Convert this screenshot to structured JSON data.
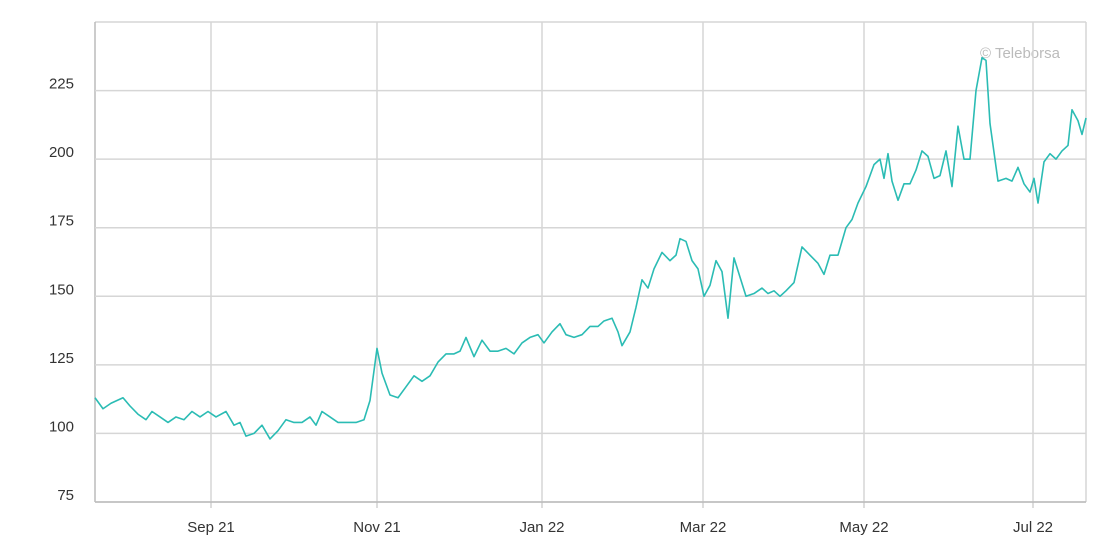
{
  "chart_data": {
    "type": "line",
    "watermark": "© Teleborsa",
    "x": [
      0,
      2,
      4,
      7,
      8.75,
      10.75,
      12.75,
      14.25,
      16.25,
      18.25,
      20.25,
      22.25,
      24.25,
      26.25,
      28.25,
      30.25,
      32.75,
      34.75,
      36.25,
      37.75,
      39.75,
      41.75,
      43.75,
      45.75,
      47.75,
      49.75,
      51.75,
      53.75,
      55.25,
      56.75,
      58.75,
      60.75,
      62.75,
      65.25,
      67.25,
      68.75,
      70.5,
      71.75,
      73.75,
      75.75,
      77.75,
      79.75,
      81.75,
      83.75,
      85.75,
      87.75,
      89.75,
      91.25,
      92.75,
      94.75,
      96.75,
      98.75,
      100.75,
      102.75,
      104.75,
      106.75,
      108.75,
      110.75,
      112.25,
      114.25,
      116.25,
      117.75,
      119.75,
      121.75,
      123.75,
      125.75,
      127.25,
      129.25,
      130.75,
      131.75,
      133.75,
      135.25,
      136.75,
      138.25,
      139.75,
      141.75,
      143.75,
      145.25,
      146.25,
      147.75,
      149.25,
      150.75,
      152.25,
      153.75,
      155.25,
      156.75,
      158.25,
      159.75,
      161.25,
      162.75,
      164.75,
      166.75,
      168.25,
      169.75,
      171.25,
      172.75,
      174.75,
      176.75,
      178.75,
      180.75,
      182.25,
      183.75,
      185.75,
      187.75,
      189.25,
      190.75,
      192.75,
      194.75,
      196.25,
      197.25,
      198.25,
      199.25,
      200.75,
      202.25,
      203.75,
      205.25,
      206.75,
      208.25,
      209.75,
      211.25,
      212.75,
      214.25,
      215.75,
      217.25,
      218.75,
      220.25,
      221.75,
      222.75,
      223.75,
      225.75,
      227.75,
      229.25,
      230.75,
      232.25,
      233.75,
      234.75,
      235.75,
      237.25,
      238.75,
      240.25,
      241.75,
      243.25,
      244.25,
      245.75,
      246.75,
      247.75
    ],
    "series": [
      {
        "color": "#2bbcb4",
        "values": [
          113,
          109,
          111,
          113,
          110,
          107,
          105,
          108,
          106,
          104,
          106,
          105,
          108,
          106,
          108,
          106,
          108,
          103,
          104,
          99,
          100,
          103,
          98,
          101,
          105,
          104,
          104,
          106,
          103,
          108,
          106,
          104,
          104,
          104,
          105,
          112,
          131,
          122,
          114,
          113,
          117,
          121,
          119,
          121,
          126,
          129,
          129,
          130,
          135,
          128,
          134,
          130,
          130,
          131,
          129,
          133,
          135,
          136,
          133,
          137,
          140,
          136,
          135,
          136,
          139,
          139,
          141,
          142,
          137,
          132,
          137,
          146,
          156,
          153,
          160,
          166,
          163,
          165,
          171,
          170,
          163,
          160,
          150,
          154,
          163,
          159,
          142,
          164,
          157,
          150,
          151,
          153,
          151,
          152,
          150,
          152,
          155,
          168,
          165,
          162,
          158,
          165,
          165,
          175,
          178,
          184,
          190,
          198,
          200,
          193,
          202,
          192,
          185,
          191,
          191,
          196,
          203,
          201,
          193,
          194,
          203,
          190,
          212,
          200,
          200,
          225,
          237,
          236,
          213,
          192,
          193,
          192,
          197,
          191,
          188,
          193,
          184,
          199,
          202,
          200,
          203,
          205,
          218,
          214,
          209,
          215
        ]
      }
    ],
    "xlim": [
      0,
      247.75
    ],
    "xticks": [
      {
        "value": 29,
        "label": "Sep 21"
      },
      {
        "value": 70.5,
        "label": "Nov 21"
      },
      {
        "value": 111.75,
        "label": "Jan 22"
      },
      {
        "value": 152,
        "label": "Mar 22"
      },
      {
        "value": 192.25,
        "label": "May 22"
      },
      {
        "value": 234.5,
        "label": "Jul 22"
      }
    ],
    "ylim": [
      75,
      250
    ],
    "yticks": [
      75,
      100,
      125,
      150,
      175,
      200,
      225
    ],
    "grid": true
  }
}
